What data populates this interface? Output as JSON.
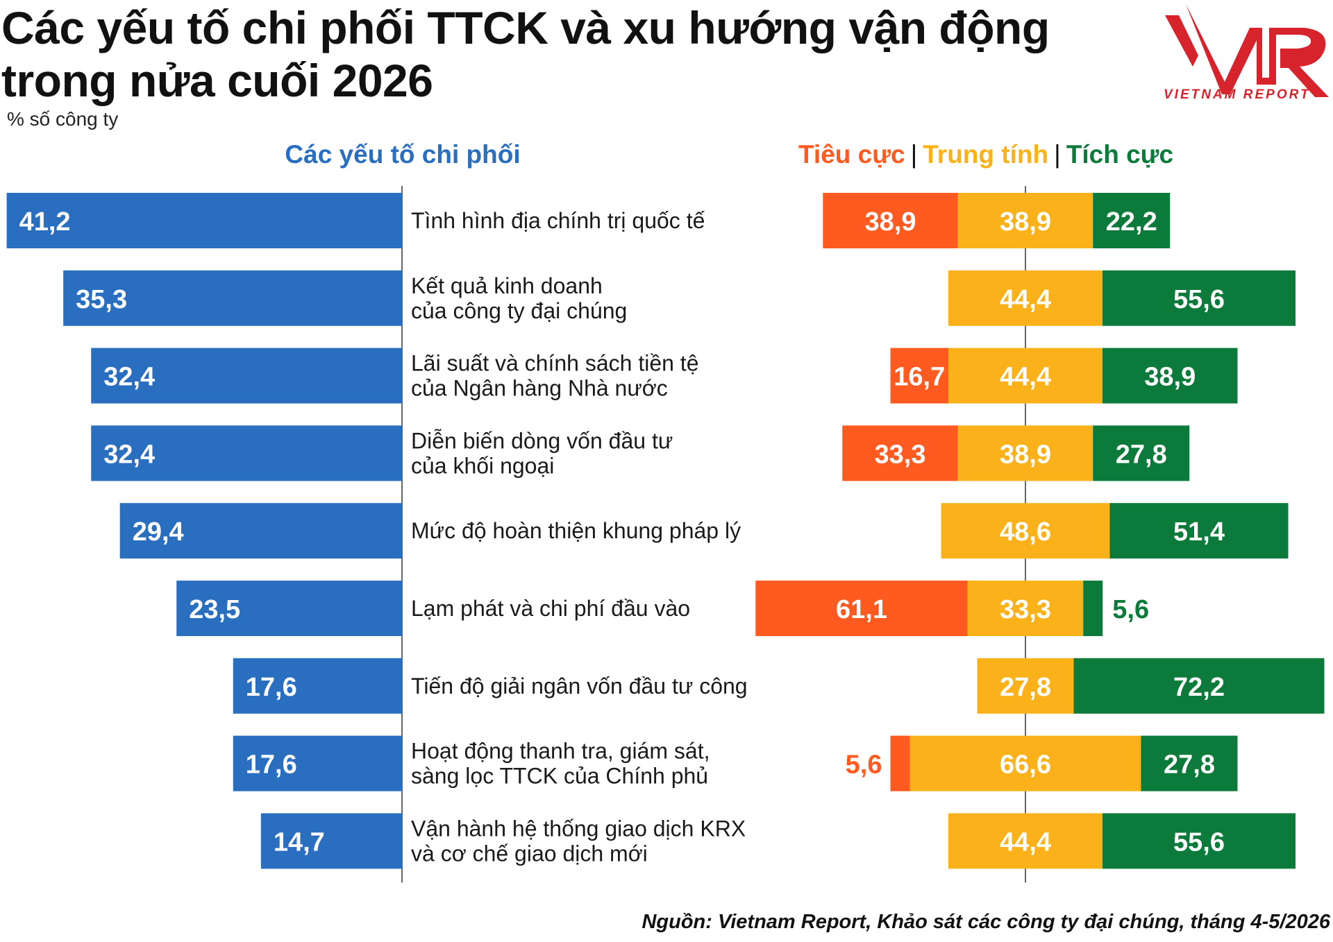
{
  "title": "Các yếu tố chi phối TTCK và xu hướng vận động trong nửa cuối 2026",
  "unit_label": "% số công ty",
  "logo": {
    "mark": "VNR",
    "text": "VIETNAM REPORT",
    "color": "#d7232b"
  },
  "left_header": "Các yếu tố chi phối",
  "legend": {
    "negative": "Tiêu cực",
    "neutral": "Trung tính",
    "positive": "Tích cực",
    "separator": "|"
  },
  "colors": {
    "factor_bar": "#2a6ec0",
    "negative": "#ff5a1f",
    "neutral": "#fbb21a",
    "positive": "#0b7a3b",
    "header_blue": "#2a6ec0"
  },
  "source": "Nguồn: Vietnam Report, Khảo sát các công ty đại chúng, tháng 4-5/2026",
  "chart_data": [
    {
      "type": "bar",
      "orientation": "horizontal",
      "categories": [
        [
          "Tình hình địa chính trị quốc tế"
        ],
        [
          "Kết quả kinh doanh",
          "của công ty đại chúng"
        ],
        [
          "Lãi suất và chính sách tiền tệ",
          "của Ngân hàng Nhà nước"
        ],
        [
          "Diễn biến dòng vốn đầu tư",
          "của khối ngoại"
        ],
        [
          "Mức độ hoàn thiện khung pháp lý"
        ],
        [
          "Lạm phát và chi phí đầu vào"
        ],
        [
          "Tiến độ giải ngân vốn đầu tư công"
        ],
        [
          "Hoạt động thanh tra, giám sát,",
          "sàng lọc TTCK của Chính phủ"
        ],
        [
          "Vận hành hệ thống giao dịch KRX",
          "và cơ chế giao dịch mới"
        ]
      ],
      "values": [
        41.2,
        35.3,
        32.4,
        32.4,
        29.4,
        23.5,
        17.6,
        17.6,
        14.7
      ],
      "value_labels": [
        "41,2",
        "35,3",
        "32,4",
        "32,4",
        "29,4",
        "23,5",
        "17,6",
        "17,6",
        "14,7"
      ]
    },
    {
      "type": "bar",
      "orientation": "horizontal",
      "stacked": true,
      "diverging": true,
      "series": [
        {
          "name": "Tiêu cực",
          "values": [
            38.9,
            0,
            16.7,
            33.3,
            0,
            61.1,
            0,
            5.6,
            0
          ],
          "labels": [
            "38,9",
            "",
            "16,7",
            "33,3",
            "",
            "61,1",
            "",
            "5,6",
            ""
          ]
        },
        {
          "name": "Trung tính",
          "values": [
            38.9,
            44.4,
            44.4,
            38.9,
            48.6,
            33.3,
            27.8,
            66.6,
            44.4
          ],
          "labels": [
            "38,9",
            "44,4",
            "44,4",
            "38,9",
            "48,6",
            "33,3",
            "27,8",
            "66,6",
            "44,4"
          ]
        },
        {
          "name": "Tích cực",
          "values": [
            22.2,
            55.6,
            38.9,
            27.8,
            51.4,
            5.6,
            72.2,
            27.8,
            55.6
          ],
          "labels": [
            "22,2",
            "55,6",
            "38,9",
            "27,8",
            "51,4",
            "5,6",
            "72,2",
            "27,8",
            "55,6"
          ]
        }
      ]
    }
  ]
}
